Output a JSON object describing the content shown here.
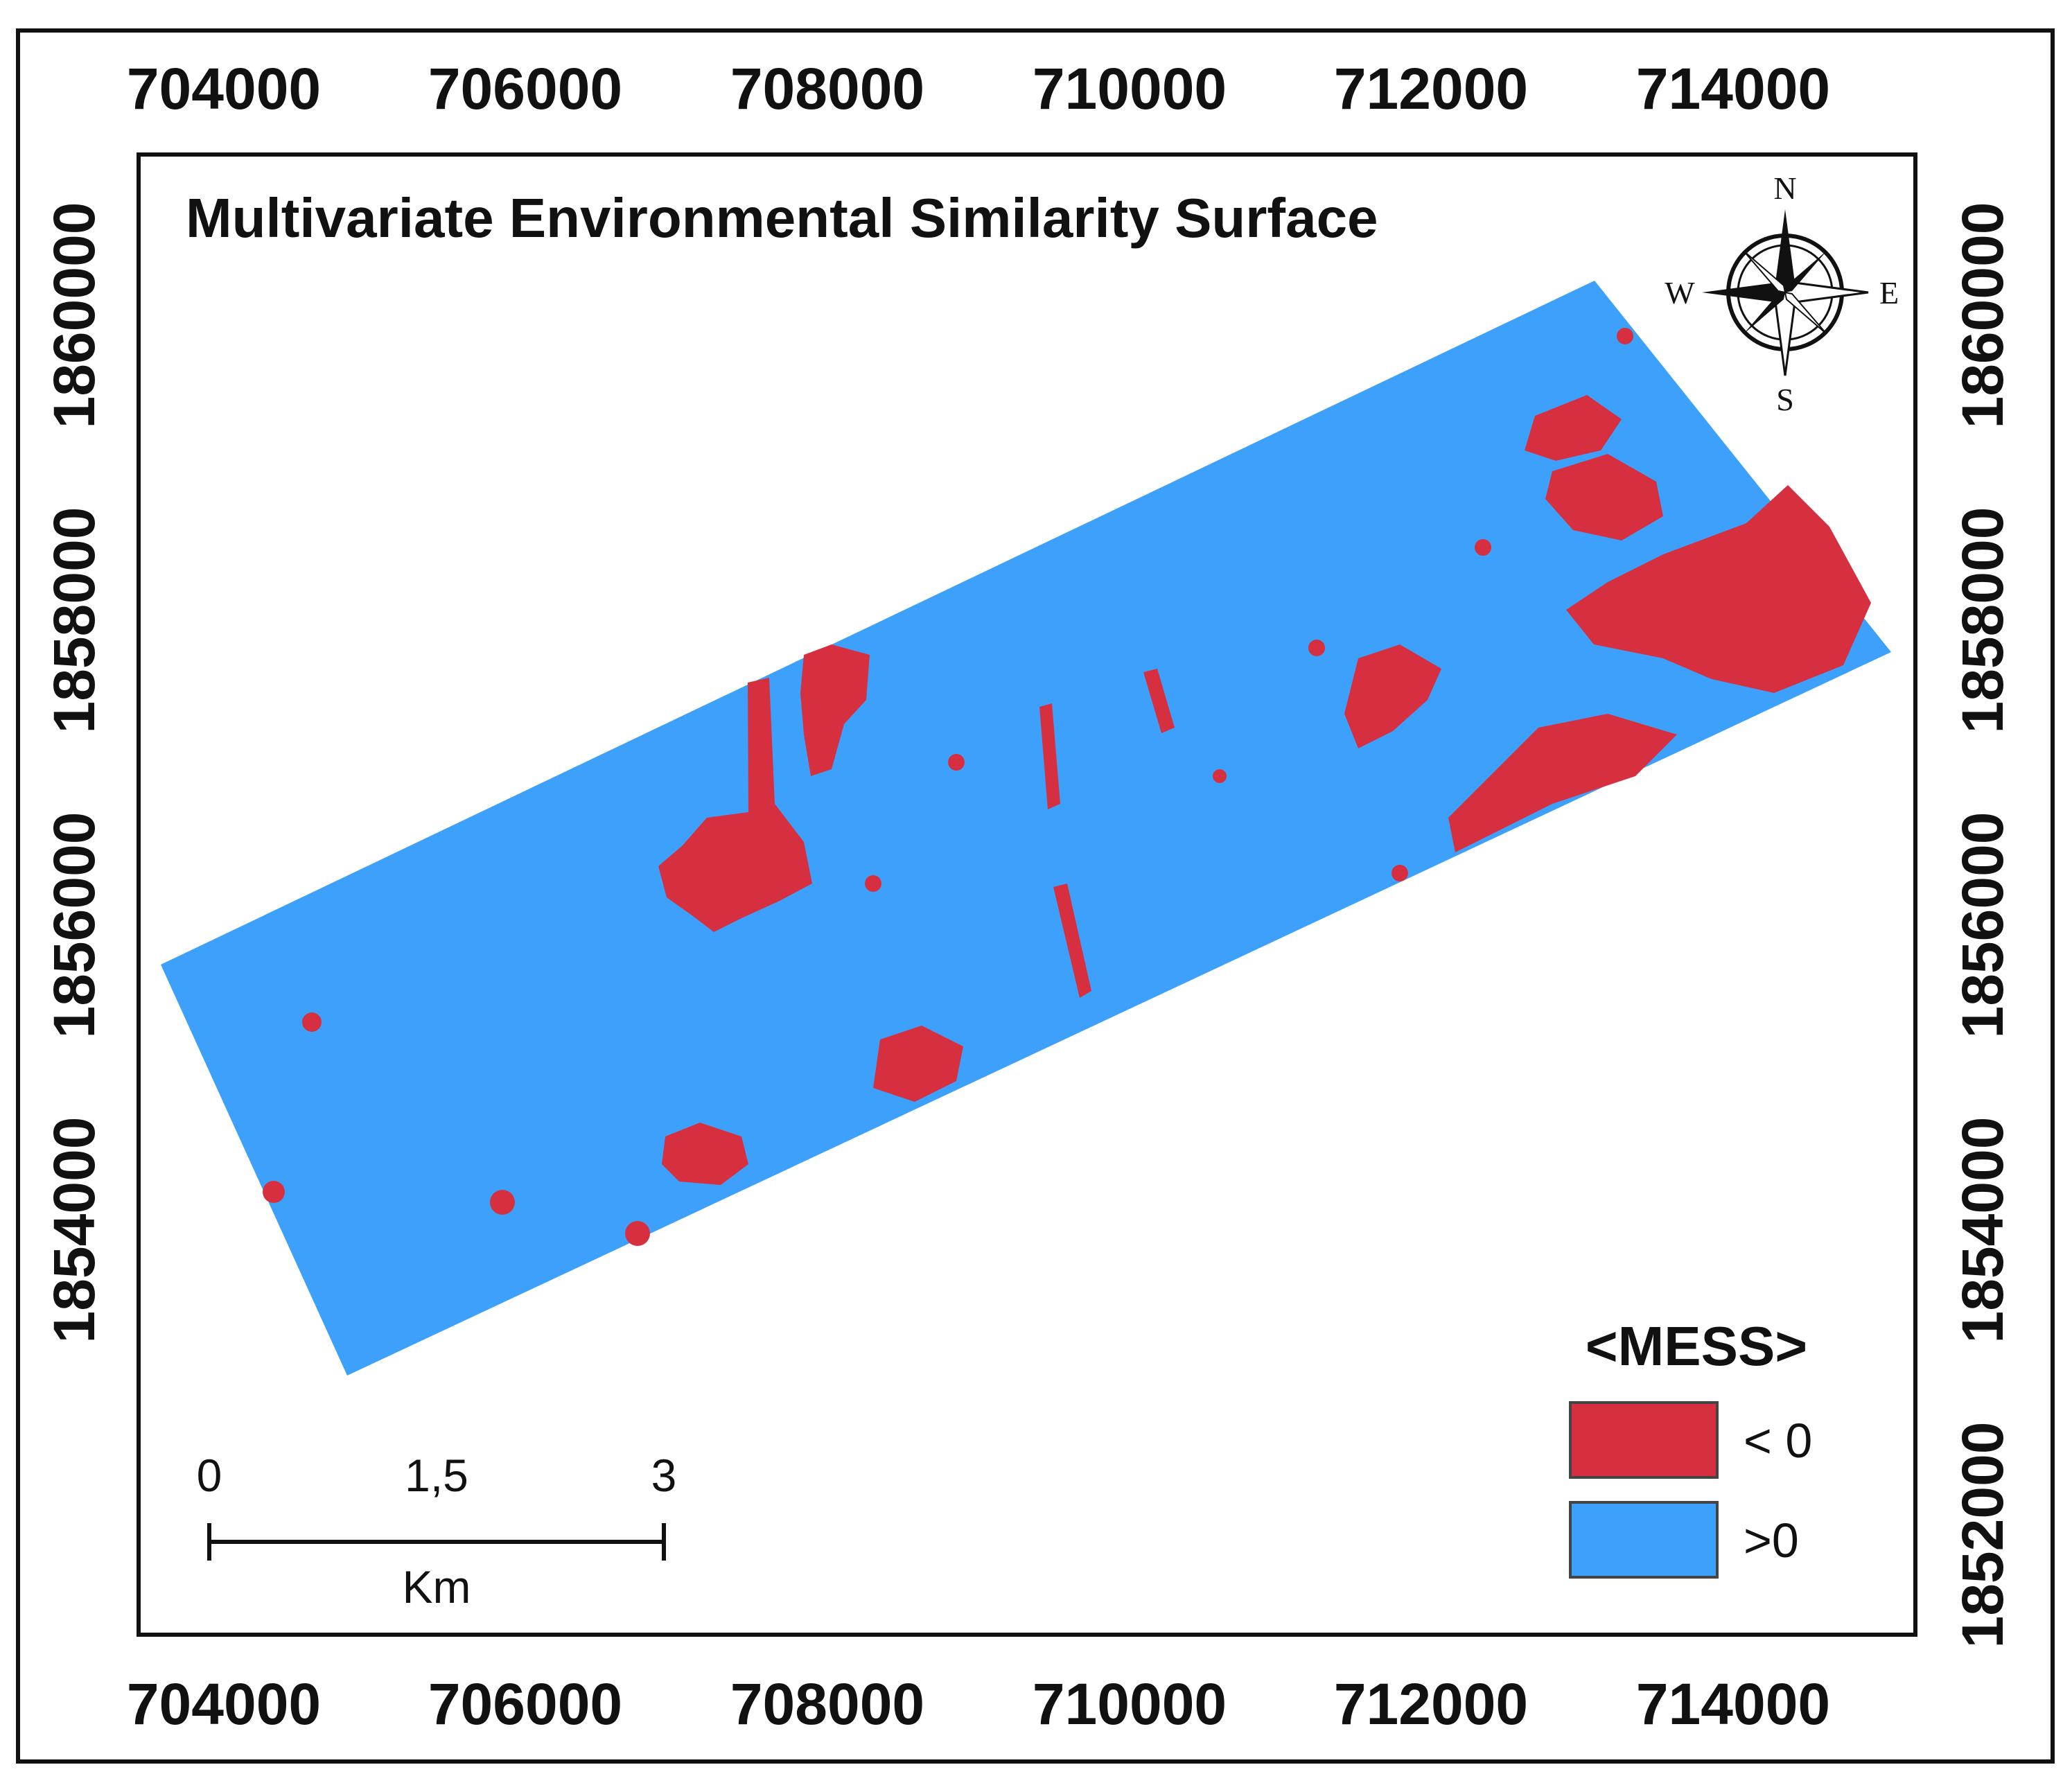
{
  "map": {
    "title": "Multivariate Environmental Similarity Surface",
    "x_ticks_top": [
      "704000",
      "706000",
      "708000",
      "710000",
      "712000",
      "714000"
    ],
    "x_ticks_bottom": [
      "704000",
      "706000",
      "708000",
      "710000",
      "712000",
      "714000"
    ],
    "y_ticks_left": [
      "1860000",
      "1858000",
      "1856000",
      "1854000"
    ],
    "y_ticks_right": [
      "1860000",
      "1858000",
      "1856000",
      "1854000",
      "1852000"
    ],
    "compass": {
      "north": "N",
      "south": "S",
      "east": "E",
      "west": "W"
    },
    "legend": {
      "title": "<MESS>",
      "items": [
        {
          "label": "< 0",
          "color": "#d63040"
        },
        {
          "label": ">0",
          "color": "#3da0fa"
        }
      ]
    },
    "scale_bar": {
      "labels": [
        "0",
        "1,5",
        "3"
      ],
      "unit": "Km"
    },
    "colors": {
      "negative": "#d63040",
      "positive": "#3da0fa",
      "frame": "#111111"
    }
  }
}
